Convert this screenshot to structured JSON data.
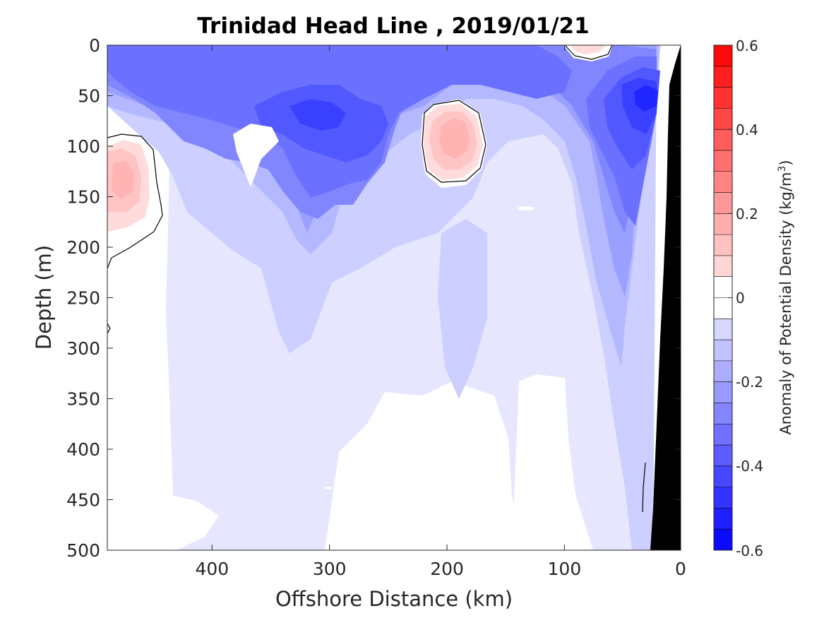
{
  "chart_data": {
    "type": "heatmap",
    "title": "Trinidad Head Line , 2019/01/21",
    "xlabel": "Offshore Distance (km)",
    "ylabel": "Depth (m)",
    "x_reversed": true,
    "y_reversed": true,
    "xlim": [
      0,
      488
    ],
    "ylim": [
      0,
      500
    ],
    "xticks": [
      400,
      300,
      200,
      100,
      0
    ],
    "yticks": [
      0,
      50,
      100,
      150,
      200,
      250,
      300,
      350,
      400,
      450,
      500
    ],
    "grid": false,
    "colorbar": {
      "label": "Anomaly of Potential Density (kg/m",
      "label_superscript": "3",
      "label_suffix": ")",
      "range": [
        -0.6,
        0.6
      ],
      "step": 0.05,
      "ticks": [
        0.6,
        0.4,
        0.2,
        0,
        -0.2,
        -0.4,
        -0.6
      ],
      "colors": [
        "#0000ff",
        "#ff0000",
        "#ffffff"
      ]
    },
    "bathymetry_color": "#000000",
    "features": [
      {
        "name": "surface low-density band",
        "x_range_km": [
          90,
          488
        ],
        "depth_range_m": [
          0,
          110
        ],
        "min_value": -0.45
      },
      {
        "name": "nearshore minimum",
        "x_km": 30,
        "depth_m": 50,
        "value": -0.55
      },
      {
        "name": "positive eddy",
        "x_km": 190,
        "depth_m": 95,
        "value": 0.2
      },
      {
        "name": "offshore positive patch",
        "x_km": 478,
        "depth_m": 135,
        "value": 0.2
      },
      {
        "name": "surface positive cap",
        "x_km": 80,
        "depth_m": 3,
        "value": 0.1
      }
    ]
  }
}
